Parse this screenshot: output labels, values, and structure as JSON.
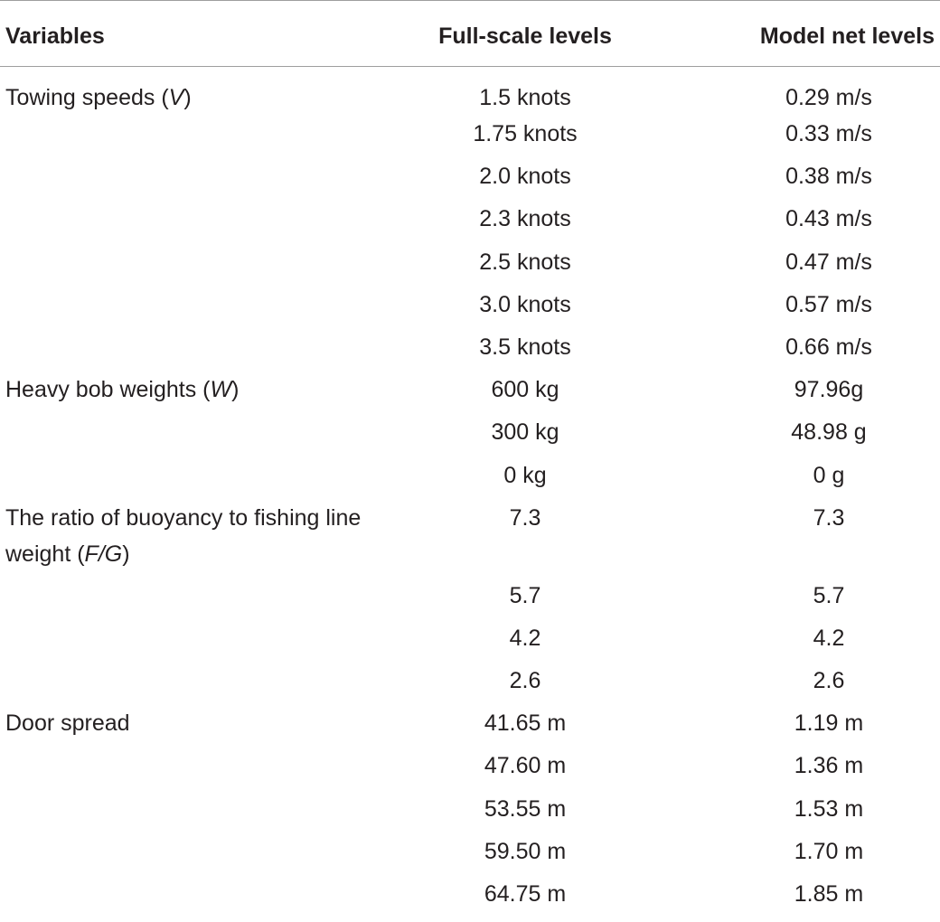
{
  "table": {
    "headers": [
      "Variables",
      "Full-scale levels",
      "Model net levels"
    ],
    "rows": [
      {
        "variable": "Towing speeds (",
        "symbol": "V",
        "suffix": ")",
        "full": "1.5 knots",
        "model": "0.29 m/s"
      },
      {
        "variable": "",
        "symbol": "",
        "suffix": "",
        "full": "1.75 knots",
        "model": "0.33 m/s"
      },
      {
        "variable": "",
        "symbol": "",
        "suffix": "",
        "full": "2.0 knots",
        "model": "0.38 m/s"
      },
      {
        "variable": "",
        "symbol": "",
        "suffix": "",
        "full": "2.3 knots",
        "model": "0.43 m/s"
      },
      {
        "variable": "",
        "symbol": "",
        "suffix": "",
        "full": "2.5 knots",
        "model": "0.47 m/s"
      },
      {
        "variable": "",
        "symbol": "",
        "suffix": "",
        "full": "3.0 knots",
        "model": "0.57 m/s"
      },
      {
        "variable": "",
        "symbol": "",
        "suffix": "",
        "full": "3.5 knots",
        "model": "0.66 m/s"
      },
      {
        "variable": "Heavy bob weights (",
        "symbol": "W",
        "suffix": ")",
        "full": "600 kg",
        "model": "97.96g"
      },
      {
        "variable": "",
        "symbol": "",
        "suffix": "",
        "full": "300 kg",
        "model": "48.98 g"
      },
      {
        "variable": "",
        "symbol": "",
        "suffix": "",
        "full": "0 kg",
        "model": "0 g"
      },
      {
        "variable": "The ratio of buoyancy to fishing line weight (",
        "symbol": "F/G",
        "suffix": ")",
        "full": "7.3",
        "model": "7.3"
      },
      {
        "variable": "",
        "symbol": "",
        "suffix": "",
        "full": "5.7",
        "model": "5.7"
      },
      {
        "variable": "",
        "symbol": "",
        "suffix": "",
        "full": "4.2",
        "model": "4.2"
      },
      {
        "variable": "",
        "symbol": "",
        "suffix": "",
        "full": "2.6",
        "model": "2.6"
      },
      {
        "variable": "Door spread",
        "symbol": "",
        "suffix": "",
        "full": "41.65 m",
        "model": "1.19 m"
      },
      {
        "variable": "",
        "symbol": "",
        "suffix": "",
        "full": "47.60 m",
        "model": "1.36 m"
      },
      {
        "variable": "",
        "symbol": "",
        "suffix": "",
        "full": "53.55 m",
        "model": "1.53 m"
      },
      {
        "variable": "",
        "symbol": "",
        "suffix": "",
        "full": "59.50 m",
        "model": "1.70 m"
      },
      {
        "variable": "",
        "symbol": "",
        "suffix": "",
        "full": "64.75 m",
        "model": "1.85 m"
      }
    ]
  }
}
